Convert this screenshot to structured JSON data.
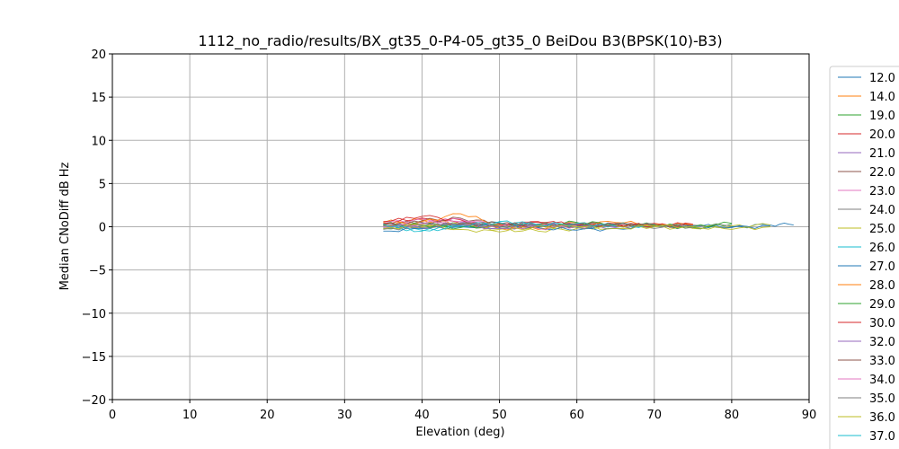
{
  "chart_data": {
    "type": "line",
    "title": "1112_no_radio/results/BX_gt35_0-P4-05_gt35_0 BeiDou B3(BPSK(10)-B3)",
    "xlabel": "Elevation (deg)",
    "ylabel": "Median CNoDiff dB Hz",
    "xlim": [
      0,
      90
    ],
    "ylim": [
      -20,
      20
    ],
    "xticks": [
      "0",
      "10",
      "20",
      "30",
      "40",
      "50",
      "60",
      "70",
      "80",
      "90"
    ],
    "yticks": [
      "20",
      "15",
      "10",
      "5",
      "0",
      "−5",
      "−10",
      "−15",
      "−20"
    ],
    "grid": true,
    "legend_position": "right, outside plot",
    "series": [
      {
        "name": "12.0",
        "color": "#1f77b4",
        "x": [
          35,
          40,
          45,
          50,
          55,
          60,
          65,
          70,
          75,
          80,
          85,
          88
        ],
        "y": [
          0.2,
          0.1,
          0.3,
          -0.1,
          0.2,
          0.1,
          0.0,
          0.2,
          0.1,
          0.0,
          0.2,
          0.2
        ]
      },
      {
        "name": "14.0",
        "color": "#ff7f0e",
        "x": [
          35,
          40,
          45,
          50,
          55,
          60,
          65
        ],
        "y": [
          0.5,
          0.8,
          0.3,
          -0.2,
          0.1,
          0.4,
          0.2
        ]
      },
      {
        "name": "19.0",
        "color": "#2ca02c",
        "x": [
          35,
          40,
          45,
          50,
          55,
          60,
          65,
          70,
          75,
          80
        ],
        "y": [
          -0.2,
          0.3,
          0.1,
          0.2,
          -0.1,
          0.0,
          0.3,
          0.1,
          -0.1,
          0.3
        ]
      },
      {
        "name": "20.0",
        "color": "#d62728",
        "x": [
          35,
          40,
          45,
          50,
          55,
          60,
          65,
          70,
          75
        ],
        "y": [
          0.6,
          1.0,
          0.4,
          0.2,
          0.5,
          0.3,
          0.1,
          0.4,
          0.2
        ]
      },
      {
        "name": "21.0",
        "color": "#9467bd",
        "x": [
          35,
          40,
          45,
          50,
          55,
          60,
          65,
          70
        ],
        "y": [
          0.3,
          -0.2,
          0.5,
          0.0,
          0.3,
          0.2,
          -0.1,
          0.2
        ]
      },
      {
        "name": "22.0",
        "color": "#8c564b",
        "x": [
          35,
          40,
          45,
          50,
          55,
          60,
          65,
          70,
          75
        ],
        "y": [
          0.1,
          0.7,
          1.0,
          0.3,
          0.2,
          0.0,
          0.3,
          0.1,
          0.0
        ]
      },
      {
        "name": "23.0",
        "color": "#e377c2",
        "x": [
          35,
          40,
          45,
          50,
          55,
          60,
          65
        ],
        "y": [
          0.4,
          0.9,
          0.6,
          0.1,
          0.3,
          0.0,
          0.2
        ]
      },
      {
        "name": "24.0",
        "color": "#7f7f7f",
        "x": [
          35,
          40,
          45,
          50,
          55,
          60,
          65,
          70,
          75,
          80
        ],
        "y": [
          -0.3,
          0.1,
          0.2,
          0.4,
          0.0,
          0.3,
          0.1,
          -0.2,
          0.2,
          0.1
        ]
      },
      {
        "name": "25.0",
        "color": "#bcbd22",
        "x": [
          35,
          40,
          45,
          50,
          55,
          60,
          65,
          70,
          75,
          80,
          85
        ],
        "y": [
          0.2,
          0.0,
          0.3,
          -0.3,
          -0.5,
          -0.2,
          0.1,
          0.0,
          -0.2,
          0.1,
          0.2
        ]
      },
      {
        "name": "26.0",
        "color": "#17becf",
        "x": [
          35,
          40,
          45,
          50,
          55,
          60,
          65,
          70
        ],
        "y": [
          0.0,
          -0.4,
          0.2,
          0.5,
          0.3,
          -0.1,
          0.2,
          0.0
        ]
      },
      {
        "name": "27.0",
        "color": "#1f77b4",
        "x": [
          35,
          40,
          45,
          50,
          55,
          60,
          65,
          70,
          75,
          80,
          85
        ],
        "y": [
          -0.5,
          -0.2,
          0.0,
          0.1,
          -0.1,
          -0.4,
          -0.2,
          0.1,
          0.0,
          -0.1,
          0.1
        ]
      },
      {
        "name": "28.0",
        "color": "#ff7f0e",
        "x": [
          35,
          40,
          45,
          50,
          55,
          60,
          65,
          70,
          75
        ],
        "y": [
          0.1,
          0.6,
          1.5,
          0.2,
          -0.3,
          0.4,
          0.5,
          0.3,
          0.2
        ]
      },
      {
        "name": "29.0",
        "color": "#2ca02c",
        "x": [
          35,
          40,
          45,
          50,
          55,
          60,
          65,
          70,
          75,
          80
        ],
        "y": [
          0.3,
          0.2,
          -0.1,
          0.1,
          0.2,
          0.5,
          0.3,
          0.2,
          0.0,
          0.4
        ]
      },
      {
        "name": "30.0",
        "color": "#d62728",
        "x": [
          35,
          40,
          45,
          50,
          55,
          60,
          65,
          70,
          75
        ],
        "y": [
          0.4,
          1.2,
          0.8,
          0.0,
          0.6,
          0.2,
          0.3,
          0.1,
          0.3
        ]
      },
      {
        "name": "32.0",
        "color": "#9467bd",
        "x": [
          35,
          40,
          45,
          50,
          55,
          60,
          65
        ],
        "y": [
          -0.1,
          0.4,
          0.2,
          -0.2,
          0.1,
          0.3,
          0.0
        ]
      },
      {
        "name": "33.0",
        "color": "#8c564b",
        "x": [
          35,
          40,
          45,
          50,
          55,
          60,
          65,
          70
        ],
        "y": [
          0.2,
          0.5,
          0.3,
          0.4,
          0.0,
          0.2,
          0.4,
          0.1
        ]
      },
      {
        "name": "34.0",
        "color": "#e377c2",
        "x": [
          35,
          40,
          45,
          50,
          55,
          60
        ],
        "y": [
          0.0,
          0.3,
          0.9,
          0.1,
          -0.2,
          0.1
        ]
      },
      {
        "name": "35.0",
        "color": "#7f7f7f",
        "x": [
          35,
          40,
          45,
          50,
          55,
          60,
          65,
          70,
          75
        ],
        "y": [
          0.1,
          -0.1,
          0.4,
          0.0,
          0.3,
          -0.1,
          0.2,
          0.3,
          -0.1
        ]
      },
      {
        "name": "36.0",
        "color": "#bcbd22",
        "x": [
          35,
          40,
          45,
          50,
          55,
          60,
          65,
          70,
          75,
          80,
          85
        ],
        "y": [
          -0.2,
          0.2,
          -0.3,
          -0.6,
          0.1,
          0.0,
          -0.2,
          0.1,
          0.0,
          -0.3,
          0.0
        ]
      },
      {
        "name": "37.0",
        "color": "#17becf",
        "x": [
          35,
          40,
          45,
          50,
          55,
          60,
          65
        ],
        "y": [
          0.3,
          -0.5,
          0.1,
          0.6,
          0.2,
          0.4,
          0.1
        ]
      }
    ]
  }
}
